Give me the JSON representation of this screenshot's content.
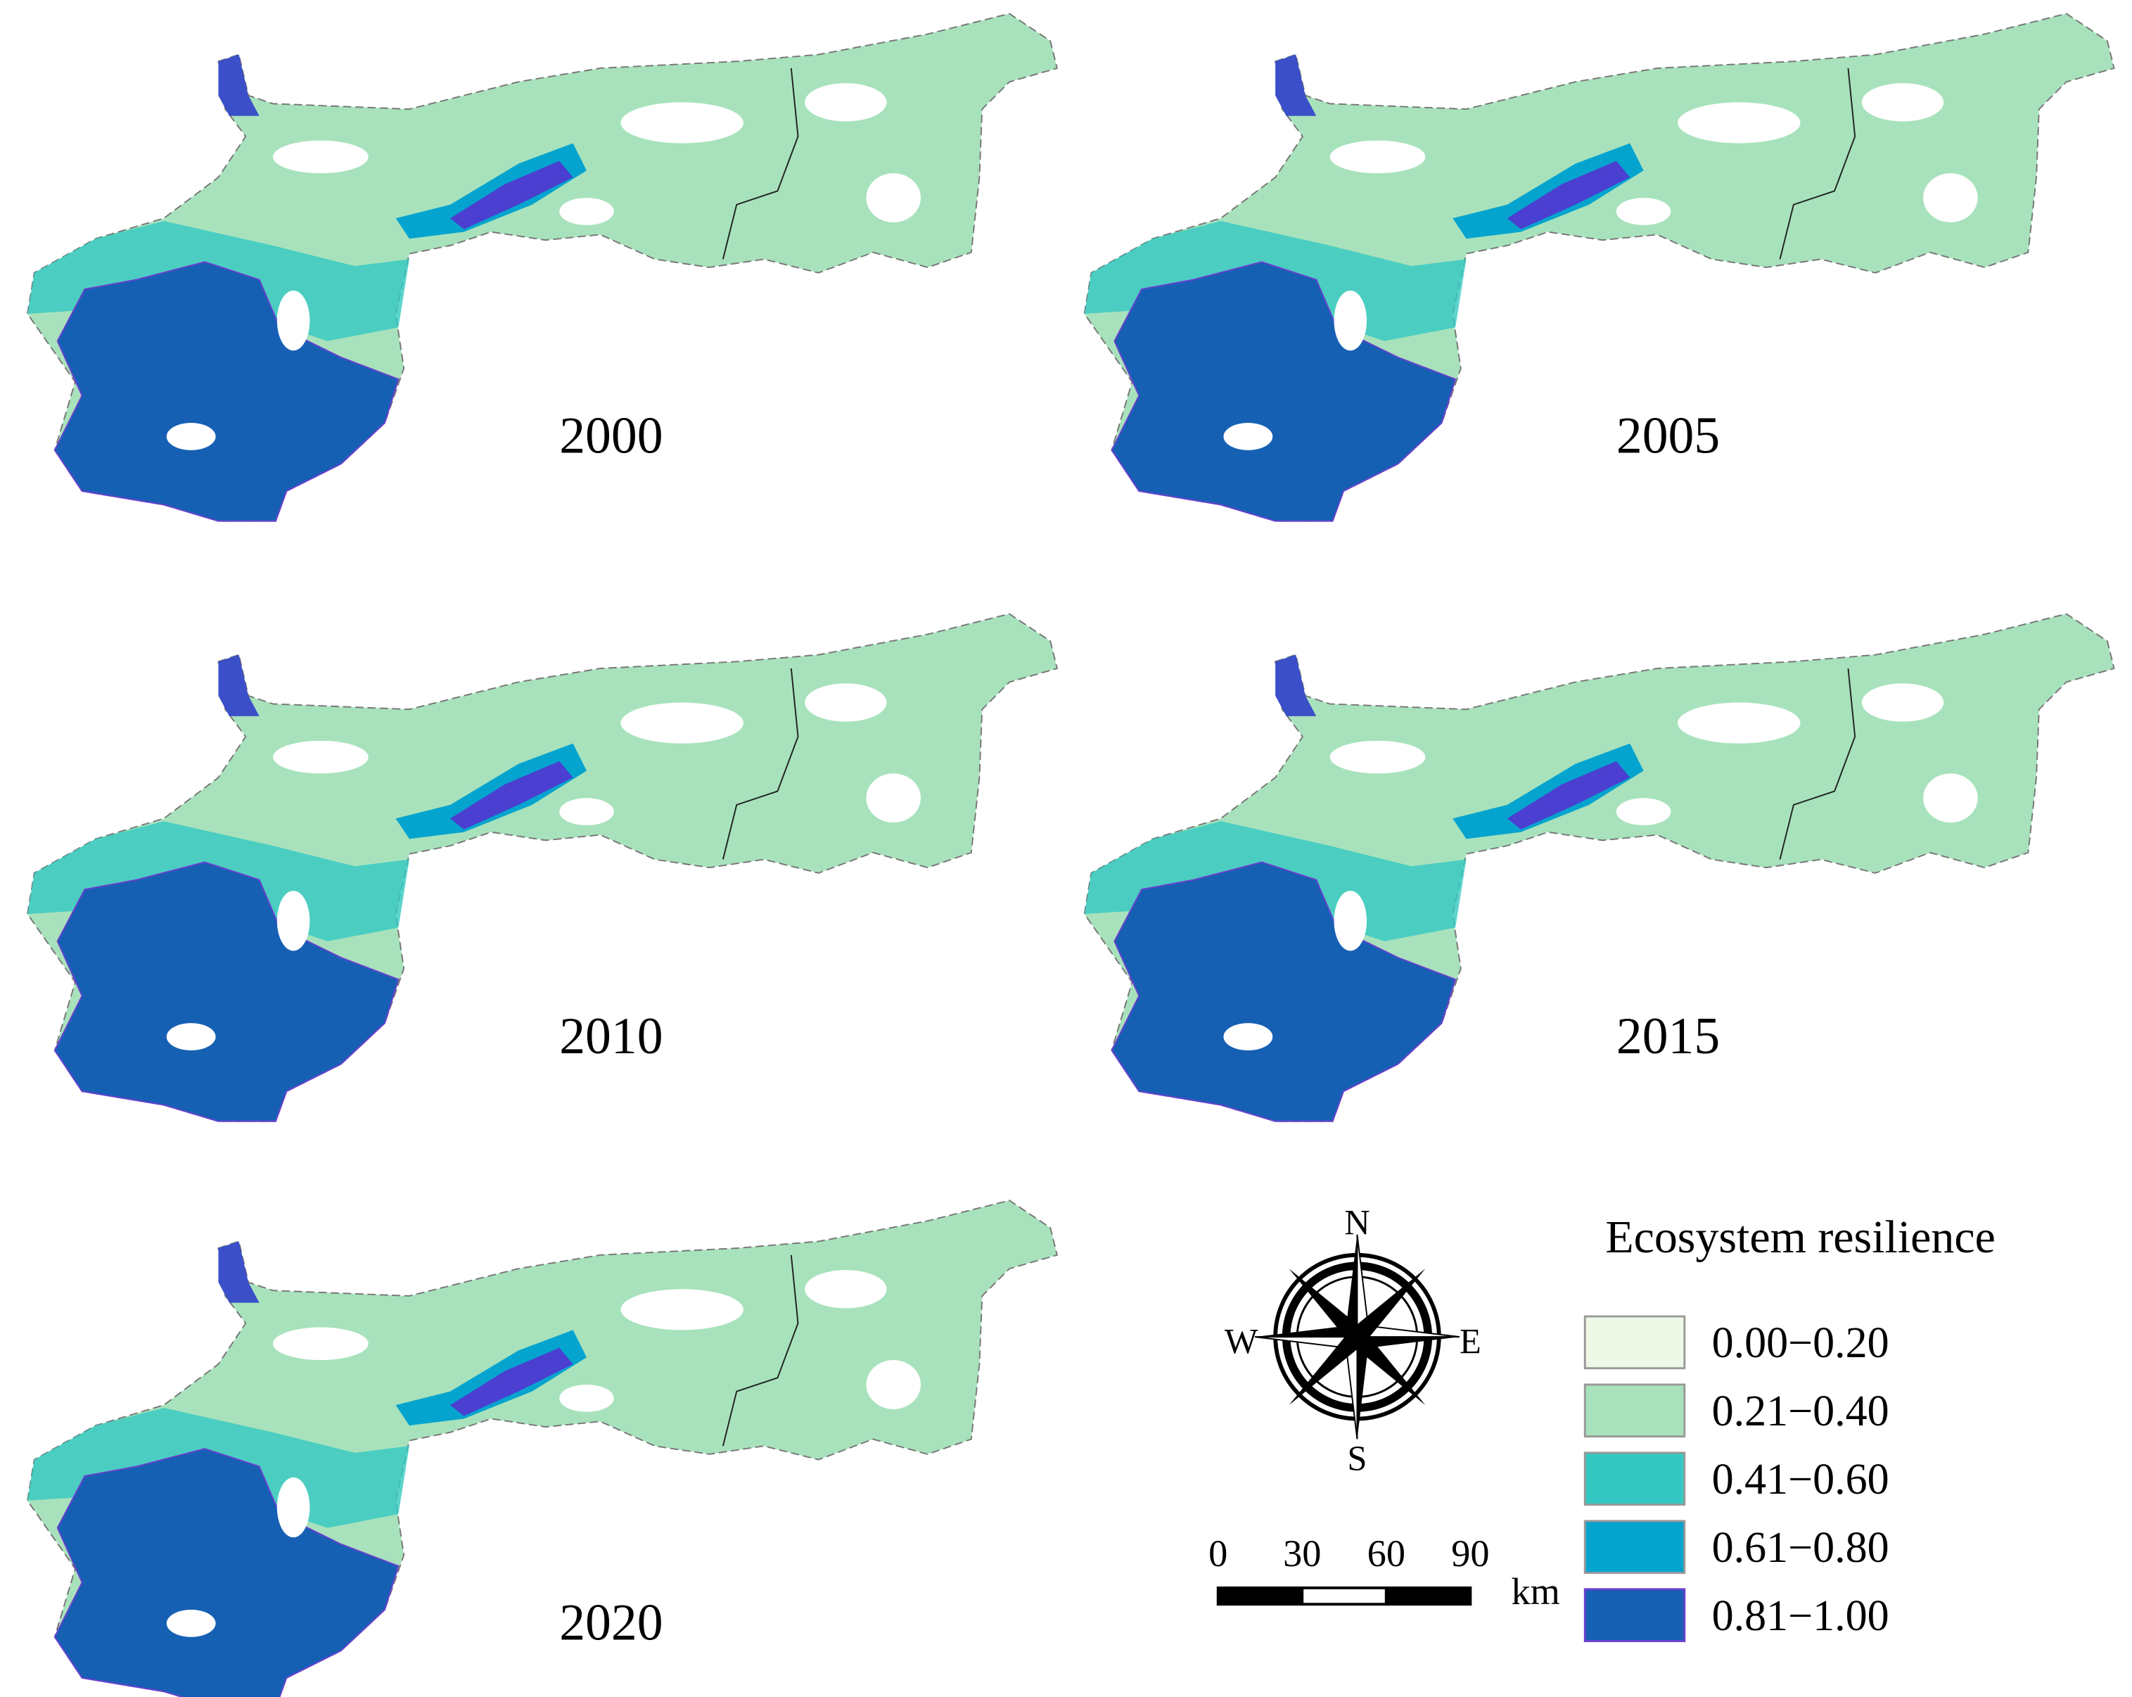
{
  "panels": [
    {
      "year": "2000"
    },
    {
      "year": "2005"
    },
    {
      "year": "2010"
    },
    {
      "year": "2015"
    },
    {
      "year": "2020"
    }
  ],
  "legend": {
    "title": "Ecosystem resilience",
    "items": [
      {
        "label": "0.00−0.20",
        "color": "#eef8e6"
      },
      {
        "label": "0.21−0.40",
        "color": "#a8e2bc"
      },
      {
        "label": "0.41−0.60",
        "color": "#33c9c2"
      },
      {
        "label": "0.61−0.80",
        "color": "#05a4cf"
      },
      {
        "label": "0.81−1.00",
        "color": "#1660b4"
      }
    ]
  },
  "compass": {
    "north": "N",
    "south": "S",
    "west": "W",
    "east": "E"
  },
  "scale_bar": {
    "ticks": [
      0,
      30,
      60,
      90
    ],
    "unit": "km"
  }
}
